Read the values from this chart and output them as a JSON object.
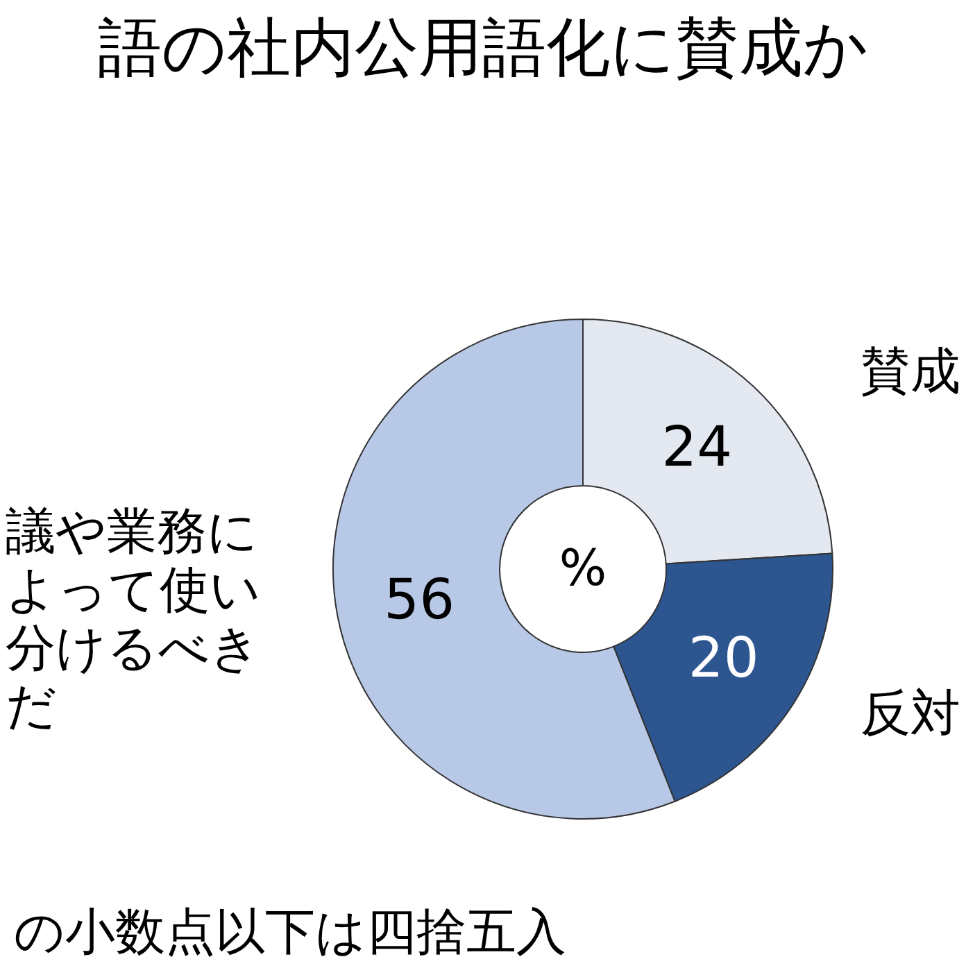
{
  "chart_data": {
    "type": "donut",
    "title": "語の社内公用語化に賛成か",
    "categories": [
      "賛成",
      "反対",
      "議や業務によって使い分けるべきだ"
    ],
    "values": [
      24,
      20,
      56
    ],
    "colors": [
      "#e3e8f1",
      "#2d5590",
      "#b8c9e7"
    ],
    "data_labels": true,
    "legend": false,
    "annotations": [
      "%",
      "の小数点以下は四捨五入"
    ]
  }
}
